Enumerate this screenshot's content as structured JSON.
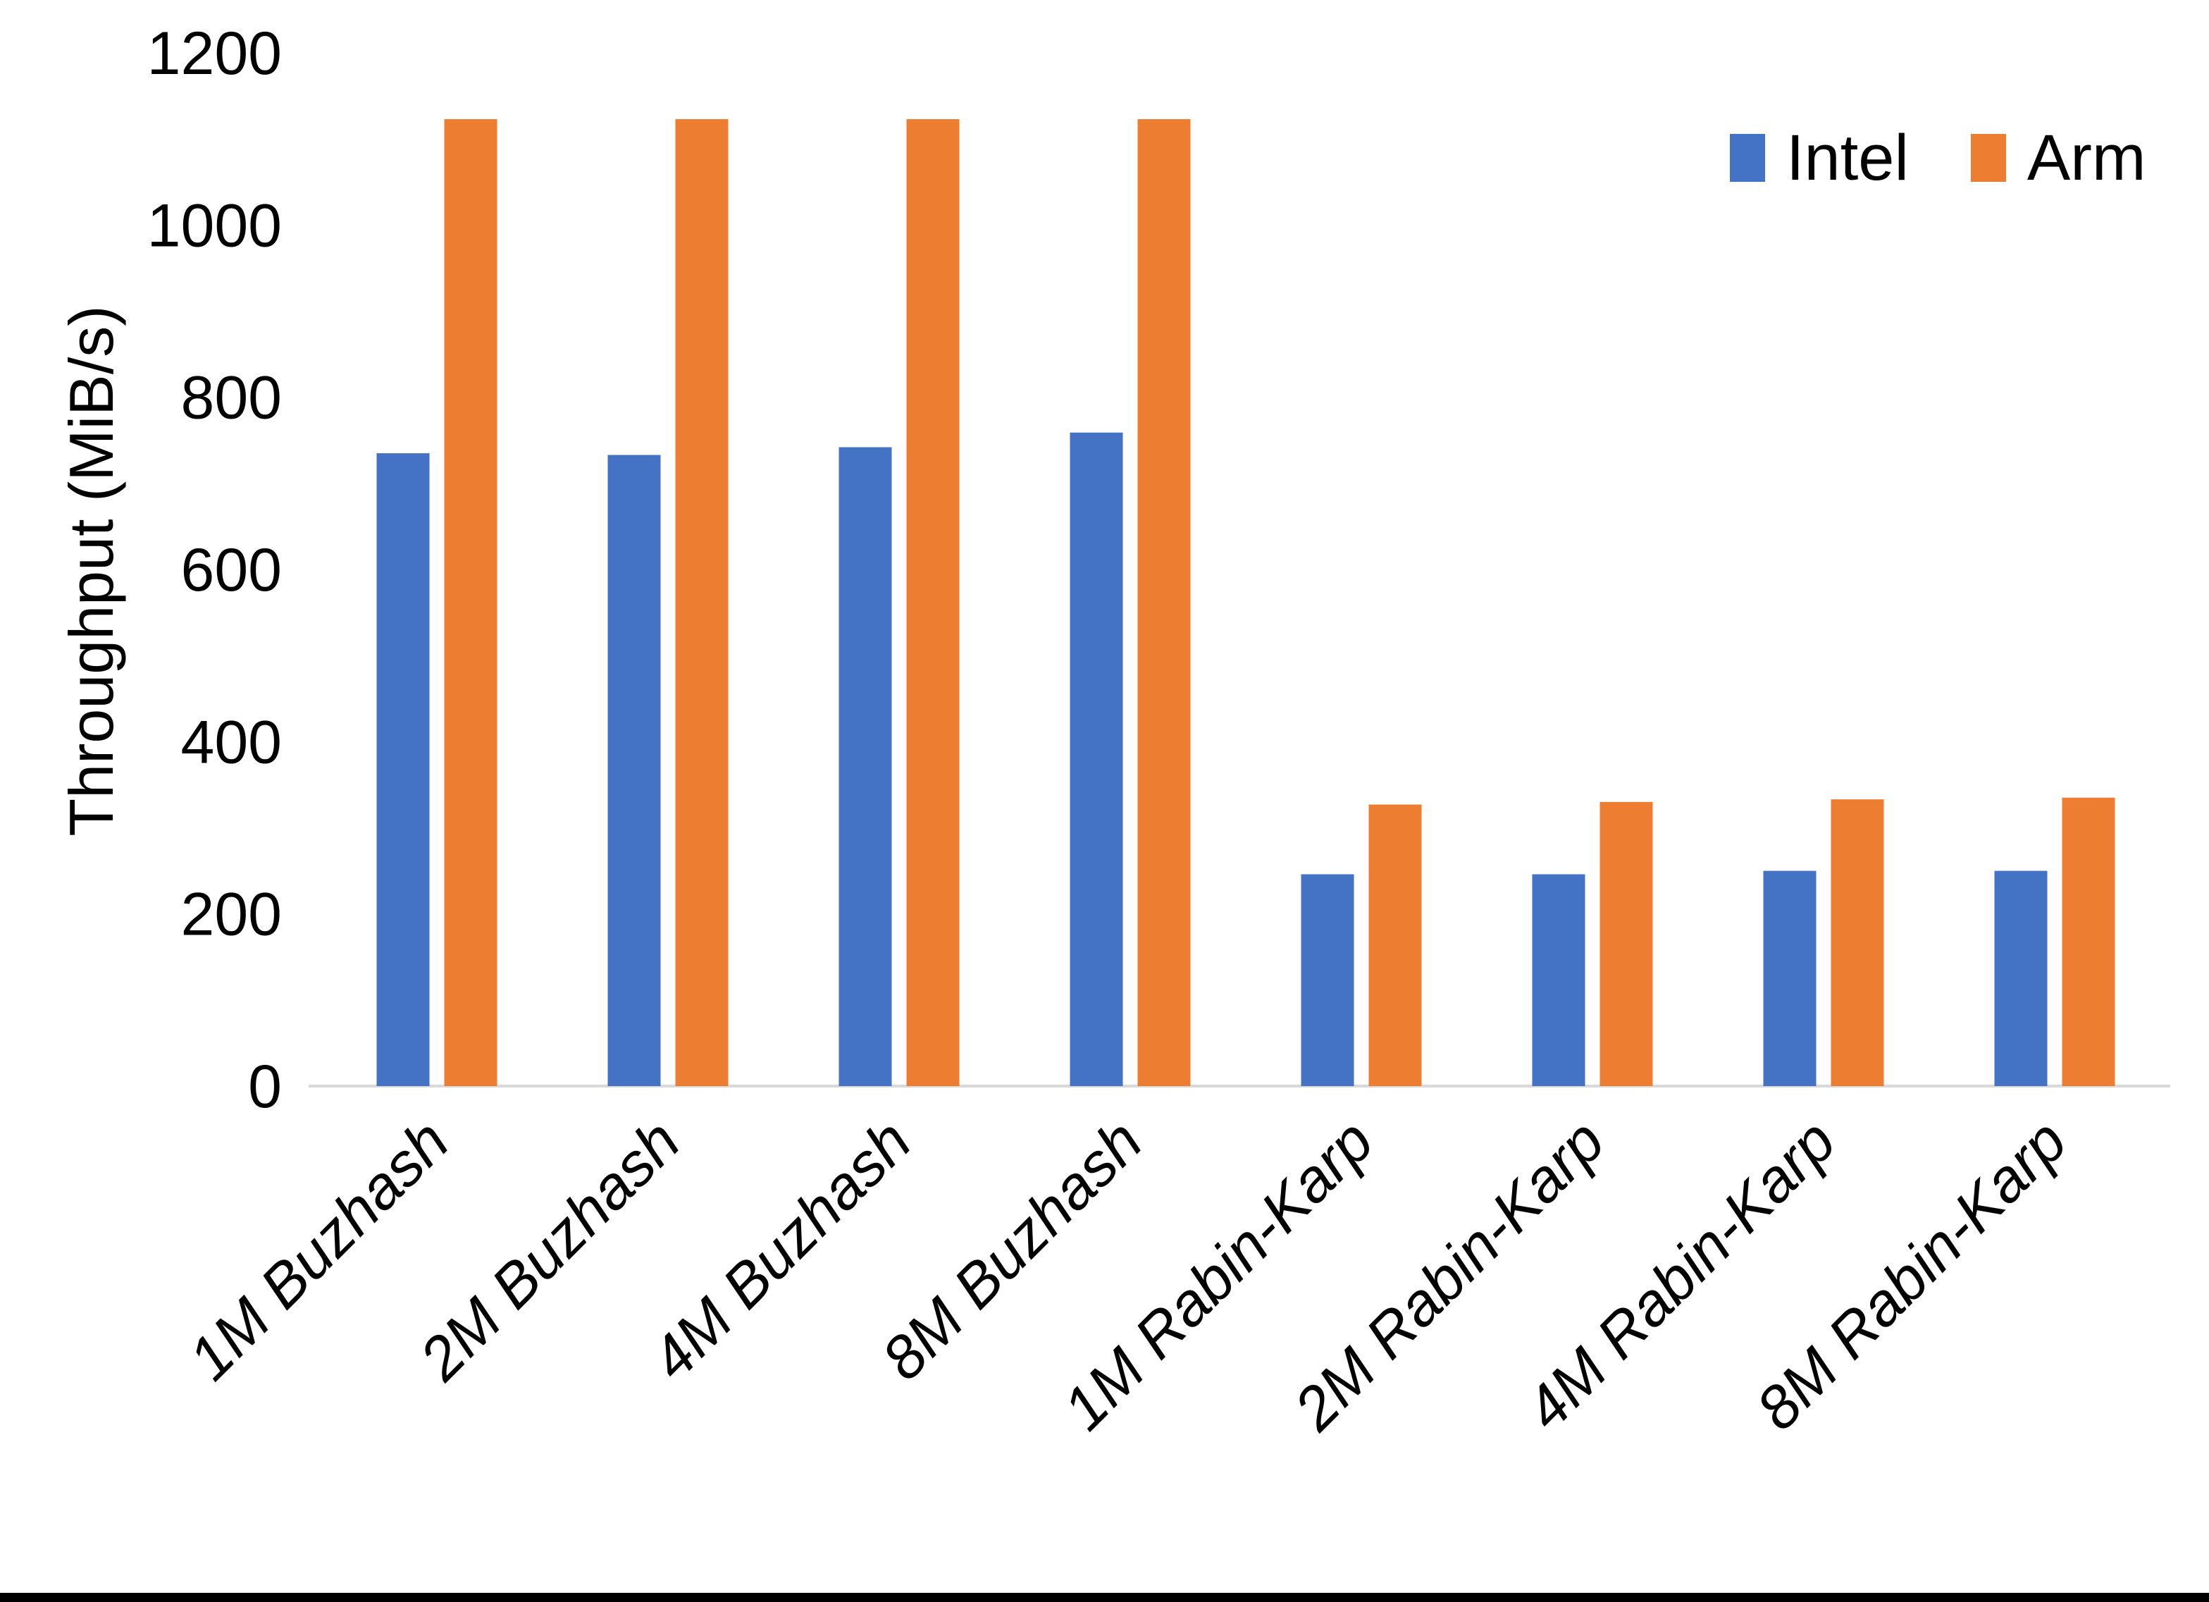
{
  "figure": {
    "background_color": "#FFFFFF",
    "bottom_border_color": "#000000"
  },
  "chart_data": {
    "type": "bar",
    "title": "",
    "xlabel": "",
    "ylabel": "Throughput (MiB/s)",
    "categories": [
      "1M Buzhash",
      "2M Buzhash",
      "4M Buzhash",
      "8M Buzhash",
      "1M Rabin-Karp",
      "2M Rabin-Karp",
      "4M Rabin-Karp",
      "8M Rabin-Karp"
    ],
    "series": [
      {
        "name": "Intel",
        "color": "#4472C4",
        "values": [
          735,
          733,
          742,
          759,
          246,
          246,
          250,
          250
        ]
      },
      {
        "name": "Arm",
        "color": "#ED7D31",
        "values": [
          1123,
          1123,
          1123,
          1123,
          327,
          330,
          333,
          335
        ]
      }
    ],
    "ylim": [
      0,
      1200
    ],
    "yticks": [
      0,
      200,
      400,
      600,
      800,
      1000,
      1200
    ],
    "grid": false,
    "legend_position": "top-right",
    "axis_line_color": "#D9D9D9",
    "text_color": "#000000"
  }
}
